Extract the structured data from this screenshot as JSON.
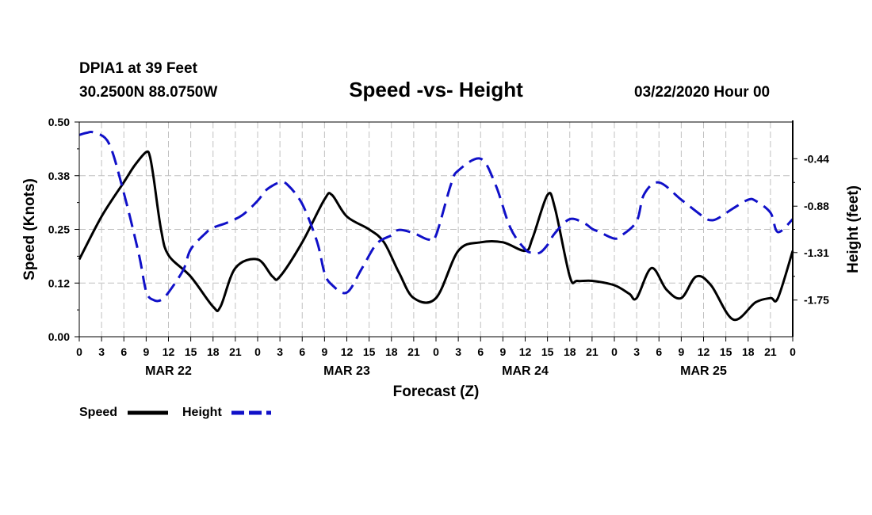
{
  "header": {
    "station": "DPIA1 at 39 Feet",
    "coords": "30.2500N 88.0750W",
    "title": "Speed -vs- Height",
    "datetime": "03/22/2020 Hour 00"
  },
  "colors": {
    "speed": "#000000",
    "height": "#1010c8",
    "grid": "#c0c0c0"
  },
  "chart_data": {
    "type": "line",
    "title": "Speed -vs- Height",
    "xlabel": "Forecast (Z)",
    "ylabel": "Speed (Knots)",
    "y2label": "Height (feet)",
    "xlim": [
      0,
      96
    ],
    "ylim": [
      0,
      0.5
    ],
    "y2lim": [
      -2.09,
      -0.1
    ],
    "x_tick_step": 3,
    "x_tick_labels": [
      "0",
      "3",
      "6",
      "9",
      "12",
      "15",
      "18",
      "21",
      "0",
      "3",
      "6",
      "9",
      "12",
      "15",
      "18",
      "21",
      "0",
      "3",
      "6",
      "9",
      "12",
      "15",
      "18",
      "21",
      "0",
      "3",
      "6",
      "9",
      "12",
      "15",
      "18",
      "21",
      "0"
    ],
    "y_ticks": [
      0,
      0.125,
      0.25,
      0.375,
      0.5
    ],
    "y_tick_labels": [
      "0.00",
      "0.12",
      "0.25",
      "0.38",
      "0.50"
    ],
    "y2_ticks": [
      -0.44,
      -0.88,
      -1.31,
      -1.75
    ],
    "y2_tick_labels": [
      "-0.44",
      "-0.88",
      "-1.31",
      "-1.75"
    ],
    "day_labels": [
      {
        "x": 12,
        "label": "MAR 22"
      },
      {
        "x": 36,
        "label": "MAR 23"
      },
      {
        "x": 60,
        "label": "MAR 24"
      },
      {
        "x": 84,
        "label": "MAR 25"
      }
    ],
    "series": [
      {
        "name": "Speed",
        "axis": "left",
        "style": "solid",
        "x": [
          0,
          3,
          6,
          7.5,
          9,
          9.5,
          10,
          11,
          12,
          15,
          18,
          19,
          21,
          24,
          26,
          27,
          30,
          33,
          34,
          36,
          39,
          41,
          43,
          45,
          48,
          51,
          54,
          57,
          60,
          61,
          63,
          64,
          66,
          67,
          69,
          72,
          74,
          75,
          77,
          79,
          81,
          83,
          85,
          88,
          91,
          93,
          94,
          96
        ],
        "y": [
          0.18,
          0.28,
          0.36,
          0.4,
          0.43,
          0.42,
          0.37,
          0.25,
          0.19,
          0.14,
          0.07,
          0.07,
          0.16,
          0.18,
          0.14,
          0.14,
          0.22,
          0.32,
          0.33,
          0.28,
          0.25,
          0.22,
          0.15,
          0.09,
          0.09,
          0.2,
          0.22,
          0.22,
          0.2,
          0.23,
          0.33,
          0.3,
          0.14,
          0.13,
          0.13,
          0.12,
          0.1,
          0.09,
          0.16,
          0.11,
          0.09,
          0.14,
          0.12,
          0.04,
          0.08,
          0.09,
          0.09,
          0.2
        ]
      },
      {
        "name": "Height",
        "axis": "right",
        "style": "dashed",
        "x": [
          0,
          1,
          2,
          4,
          6,
          8,
          9,
          10,
          11,
          12,
          14,
          15,
          17,
          18,
          20,
          22,
          24,
          25,
          26,
          27,
          28,
          30,
          32,
          33,
          34,
          36,
          38,
          40,
          42,
          43,
          45,
          47,
          48,
          50,
          51,
          54,
          56,
          58,
          60,
          61,
          62,
          63,
          64,
          66,
          68,
          69,
          70,
          72,
          73,
          75,
          76,
          78,
          81,
          84,
          85,
          86,
          88,
          90,
          91,
          93,
          94,
          96
        ],
        "y": [
          -0.22,
          -0.2,
          -0.2,
          -0.3,
          -0.76,
          -1.32,
          -1.67,
          -1.75,
          -1.75,
          -1.68,
          -1.47,
          -1.28,
          -1.13,
          -1.08,
          -1.03,
          -0.96,
          -0.83,
          -0.74,
          -0.69,
          -0.66,
          -0.68,
          -0.86,
          -1.21,
          -1.5,
          -1.61,
          -1.68,
          -1.46,
          -1.23,
          -1.15,
          -1.1,
          -1.13,
          -1.19,
          -1.15,
          -0.68,
          -0.55,
          -0.44,
          -0.68,
          -1.08,
          -1.28,
          -1.31,
          -1.31,
          -1.24,
          -1.13,
          -1.0,
          -1.04,
          -1.09,
          -1.12,
          -1.18,
          -1.15,
          -1.02,
          -0.77,
          -0.66,
          -0.82,
          -0.98,
          -1.01,
          -0.99,
          -0.9,
          -0.82,
          -0.83,
          -0.94,
          -1.12,
          -1.0
        ]
      }
    ]
  },
  "legend": {
    "speed": "Speed",
    "height": "Height"
  }
}
